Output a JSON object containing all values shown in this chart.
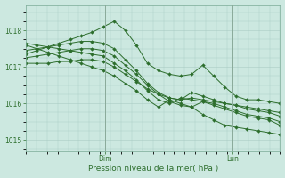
{
  "background_color": "#cce8e0",
  "grid_color": "#aaccc4",
  "line_color": "#2d6e2d",
  "title": "Pression niveau de la mer( hPa )",
  "ylim": [
    1014.7,
    1018.7
  ],
  "yticks": [
    1015,
    1016,
    1017,
    1018
  ],
  "xlim": [
    0,
    24
  ],
  "dim_x": 7.5,
  "lun_x": 19.5,
  "series": [
    [
      1017.35,
      1017.45,
      1017.55,
      1017.65,
      1017.75,
      1017.85,
      1017.95,
      1018.1,
      1018.25,
      1018.0,
      1017.6,
      1017.1,
      1016.9,
      1016.8,
      1016.75,
      1016.8,
      1017.05,
      1016.75,
      1016.45,
      1016.2,
      1016.1,
      1016.1,
      1016.05,
      1016.0
    ],
    [
      1017.6,
      1017.5,
      1017.4,
      1017.3,
      1017.2,
      1017.1,
      1017.0,
      1016.9,
      1016.75,
      1016.55,
      1016.35,
      1016.1,
      1015.9,
      1016.1,
      1016.0,
      1015.9,
      1015.7,
      1015.55,
      1015.4,
      1015.35,
      1015.3,
      1015.25,
      1015.2,
      1015.15
    ],
    [
      1017.45,
      1017.5,
      1017.55,
      1017.6,
      1017.65,
      1017.7,
      1017.7,
      1017.65,
      1017.5,
      1017.2,
      1016.9,
      1016.55,
      1016.3,
      1016.15,
      1016.1,
      1016.3,
      1016.2,
      1016.1,
      1016.0,
      1015.95,
      1015.85,
      1015.8,
      1015.75,
      1015.65
    ],
    [
      1017.65,
      1017.6,
      1017.55,
      1017.5,
      1017.45,
      1017.4,
      1017.35,
      1017.3,
      1017.1,
      1016.9,
      1016.65,
      1016.35,
      1016.1,
      1016.0,
      1016.15,
      1016.1,
      1016.05,
      1016.0,
      1015.9,
      1015.8,
      1015.7,
      1015.65,
      1015.6,
      1015.5
    ],
    [
      1017.25,
      1017.3,
      1017.35,
      1017.4,
      1017.45,
      1017.5,
      1017.5,
      1017.45,
      1017.3,
      1017.05,
      1016.8,
      1016.5,
      1016.25,
      1016.05,
      1015.95,
      1015.9,
      1016.05,
      1015.95,
      1015.85,
      1015.75,
      1015.65,
      1015.6,
      1015.55,
      1015.4
    ],
    [
      1017.1,
      1017.1,
      1017.1,
      1017.15,
      1017.15,
      1017.2,
      1017.2,
      1017.15,
      1017.0,
      1016.8,
      1016.6,
      1016.4,
      1016.25,
      1016.15,
      1016.1,
      1016.15,
      1016.1,
      1016.05,
      1016.0,
      1015.95,
      1015.9,
      1015.85,
      1015.8,
      1015.75
    ]
  ],
  "n_points": 24
}
